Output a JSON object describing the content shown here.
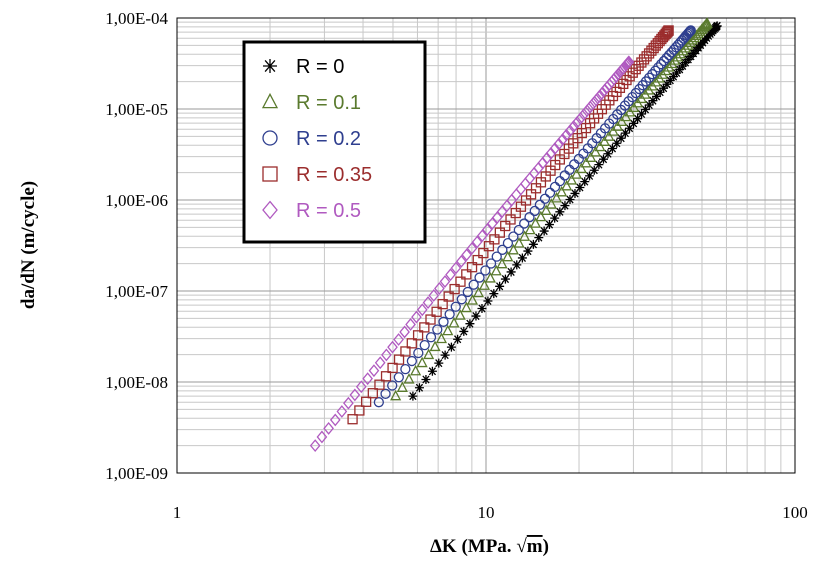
{
  "chart_data": {
    "type": "scatter",
    "x_scale": "log",
    "y_scale": "log",
    "xlim": [
      1,
      100
    ],
    "ylim": [
      1e-09,
      0.0001
    ],
    "grid": true,
    "legend_position": "top-left",
    "xlabel": "ΔK (MPa. √m)",
    "xlabel_parts": {
      "main": "ΔK (MPa. ",
      "root": "√",
      "m": "m",
      "close": ")"
    },
    "ylabel": "da/dN (m/cycle)",
    "x_ticks": [
      "1",
      "10",
      "100"
    ],
    "y_ticks": [
      "1,00E-09",
      "1,00E-08",
      "1,00E-07",
      "1,00E-06",
      "1,00E-05",
      "1,00E-04"
    ],
    "series": [
      {
        "name": "R = 0",
        "marker": "asterisk",
        "color": "#000000",
        "x_range": [
          5.8,
          56
        ],
        "y_range": [
          7e-09,
          8.2e-05
        ]
      },
      {
        "name": "R = 0.1",
        "marker": "triangle",
        "color": "#5a7a2e",
        "x_range": [
          5.1,
          52
        ],
        "y_range": [
          7e-09,
          8.7e-05
        ]
      },
      {
        "name": "R = 0.2",
        "marker": "circle",
        "color": "#2f3f8f",
        "x_range": [
          4.5,
          46
        ],
        "y_range": [
          6e-09,
          7.3e-05
        ]
      },
      {
        "name": "R = 0.35",
        "marker": "square",
        "color": "#9b2d2d",
        "x_range": [
          3.7,
          39
        ],
        "y_range": [
          3.9e-09,
          7.3e-05
        ]
      },
      {
        "name": "R = 0.5",
        "marker": "diamond",
        "color": "#b05ac0",
        "x_range": [
          2.8,
          29
        ],
        "y_range": [
          2e-09,
          3.3e-05
        ]
      }
    ]
  }
}
